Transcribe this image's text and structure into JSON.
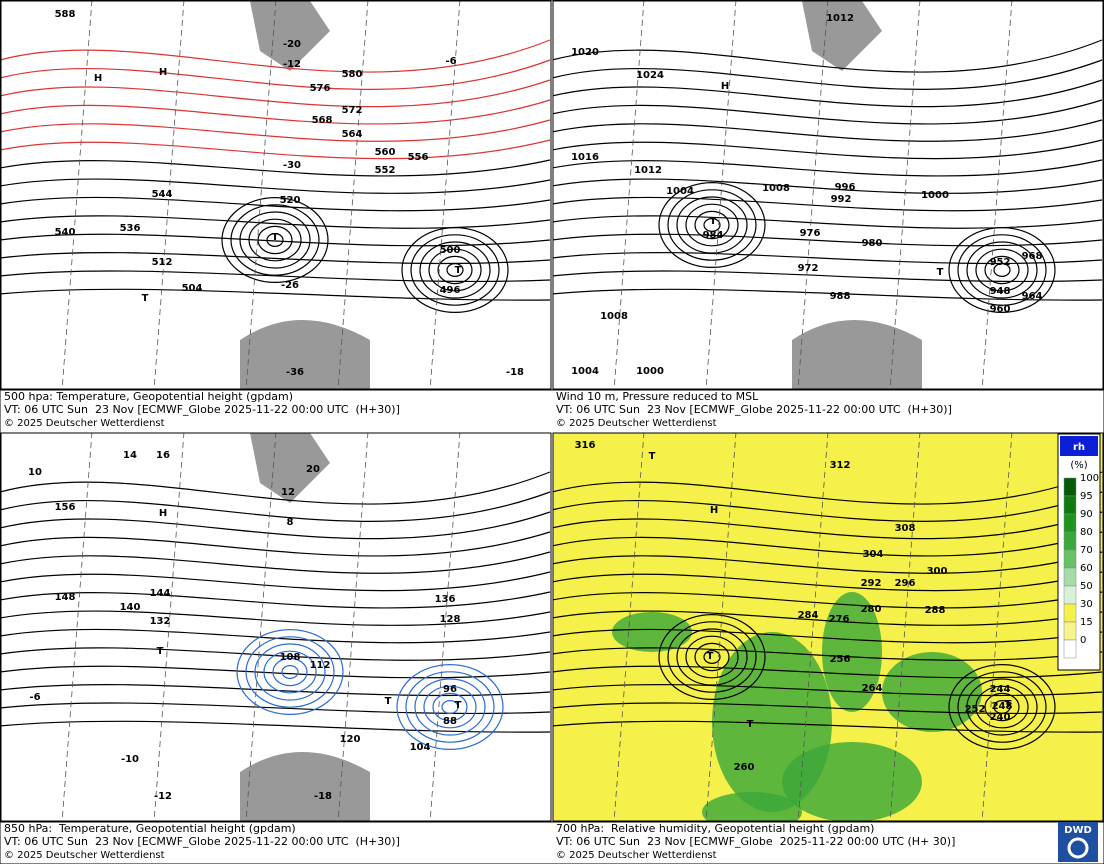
{
  "panels": [
    {
      "caption": [
        "500 hpa: Temperature, Geopotential height (gpdam)",
        "VT: 06 UTC Sun  23 Nov [ECMWF_Globe 2025-11-22 00:00 UTC  (H+30)]",
        "© 2025 Deutscher Wetterdienst"
      ],
      "labels": [
        "588",
        "580",
        "576",
        "572",
        "568",
        "564",
        "560",
        "556",
        "552",
        "544",
        "540",
        "536",
        "520",
        "512",
        "504",
        "500",
        "496",
        "-6",
        "-12",
        "-20",
        "-30",
        "-26",
        "-36",
        "-18",
        "H",
        "H",
        "T",
        "T",
        "T"
      ]
    },
    {
      "caption": [
        "Wind 10 m, Pressure reduced to MSL",
        "VT: 06 UTC Sun  23 Nov [ECMWF_Globe 2025-11-22 00:00 UTC  (H+30)]",
        "© 2025 Deutscher Wetterdienst"
      ],
      "labels": [
        "1020",
        "1024",
        "1016",
        "1012",
        "1008",
        "1004",
        "996",
        "992",
        "988",
        "984",
        "980",
        "976",
        "972",
        "1000",
        "1008",
        "1004",
        "1000",
        "952",
        "948",
        "960",
        "964",
        "968",
        "1012",
        "H",
        "T",
        "T"
      ]
    },
    {
      "caption": [
        "850 hPa:  Temperature, Geopotential height (gpdam)",
        "VT: 06 UTC Sun  23 Nov [ECMWF_Globe 2025-11-22 00:00 UTC  (H+30)]",
        "© 2025 Deutscher Wetterdienst"
      ],
      "labels": [
        "156",
        "148",
        "144",
        "140",
        "136",
        "132",
        "128",
        "112",
        "108",
        "104",
        "96",
        "88",
        "120",
        "10",
        "14",
        "16",
        "20",
        "12",
        "8",
        "-6",
        "-10",
        "-12",
        "-18",
        "H",
        "T",
        "T",
        "T"
      ]
    },
    {
      "caption": [
        "700 hPa:  Relative humidity, Geopotential height (gpdam)",
        "VT: 06 UTC Sun  23 Nov [ECMWF_Globe  2025-11-22 00:00 UTC (H+ 30)]",
        "© 2025 Deutscher Wetterdienst"
      ],
      "labels": [
        "316",
        "312",
        "308",
        "304",
        "300",
        "296",
        "292",
        "288",
        "284",
        "280",
        "276",
        "264",
        "260",
        "256",
        "252",
        "248",
        "244",
        "240",
        "T",
        "H",
        "T",
        "T",
        "T"
      ]
    }
  ],
  "legend": {
    "title": "rh",
    "unit": "(%)",
    "ticks": [
      "100",
      "95",
      "90",
      "80",
      "70",
      "60",
      "50",
      "30",
      "15",
      "0"
    ]
  },
  "logo": "DWD"
}
